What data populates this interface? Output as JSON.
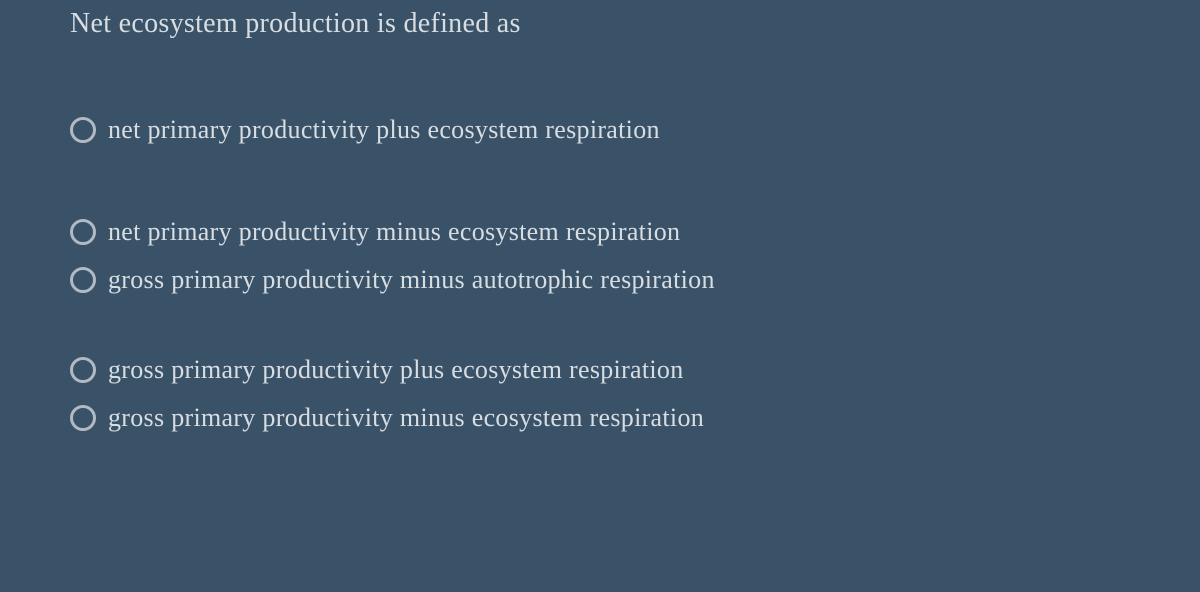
{
  "question": {
    "text": "Net ecosystem production is defined as"
  },
  "options": [
    {
      "label": "net primary productivity plus ecosystem respiration",
      "spacing": "spaced-large"
    },
    {
      "label": "net primary productivity minus ecosystem respiration",
      "spacing": "spaced-small"
    },
    {
      "label": "gross primary productivity minus autotrophic respiration",
      "spacing": "spaced-medium"
    },
    {
      "label": "gross primary productivity plus ecosystem respiration",
      "spacing": "spaced-small"
    },
    {
      "label": "gross primary productivity minus ecosystem respiration",
      "spacing": ""
    }
  ],
  "colors": {
    "background": "#3a5268",
    "text": "#d8dde2",
    "radio_border": "#b0bac4"
  }
}
